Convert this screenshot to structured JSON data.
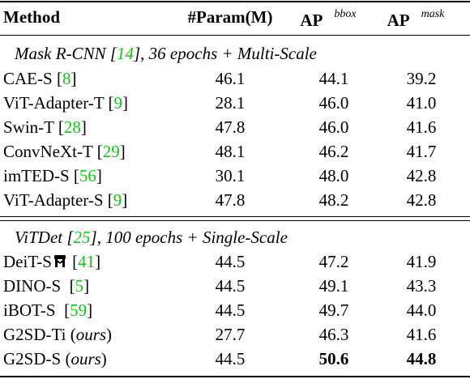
{
  "header": {
    "method": "Method",
    "param": "#Param(M)",
    "ap_bbox_base": "AP",
    "ap_bbox_sup": "bbox",
    "ap_mask_base": "AP",
    "ap_mask_sup": "mask"
  },
  "section1": {
    "title_pre": "Mask R-CNN [",
    "cite": "14",
    "title_post": "], 36 epochs + Multi-Scale"
  },
  "section2": {
    "title_pre": "ViTDet [",
    "cite": "25",
    "title_post": "], 100 epochs + Single-Scale"
  },
  "rows1": [
    {
      "name": "CAE-S",
      "cite": "8",
      "param": "46.1",
      "bbox": "44.1",
      "mask": "39.2"
    },
    {
      "name": "ViT-Adapter-T",
      "cite": "9",
      "param": "28.1",
      "bbox": "46.0",
      "mask": "41.0"
    },
    {
      "name": "Swin-T",
      "cite": "28",
      "param": "47.8",
      "bbox": "46.0",
      "mask": "41.6"
    },
    {
      "name": "ConvNeXt-T",
      "cite": "29",
      "param": "48.1",
      "bbox": "46.2",
      "mask": "41.7"
    },
    {
      "name": "imTED-S",
      "cite": "56",
      "param": "30.1",
      "bbox": "48.0",
      "mask": "42.8"
    },
    {
      "name": "ViT-Adapter-S",
      "cite": "9",
      "param": "47.8",
      "bbox": "48.2",
      "mask": "42.8"
    }
  ],
  "rows2": [
    {
      "name": "DeiT-S",
      "cite": "41",
      "param": "44.5",
      "bbox": "47.2",
      "mask": "41.9"
    },
    {
      "name": "DINO-S",
      "cite": "5",
      "param": "44.5",
      "bbox": "49.1",
      "mask": "43.3"
    },
    {
      "name": "iBOT-S",
      "cite": "59",
      "param": "44.5",
      "bbox": "49.7",
      "mask": "44.0"
    },
    {
      "name": "G2SD-Ti",
      "ours": "ours",
      "param": "27.7",
      "bbox": "46.3",
      "mask": "41.6"
    },
    {
      "name": "G2SD-S",
      "ours": "ours",
      "param": "44.5",
      "bbox": "50.6",
      "mask": "44.8"
    }
  ]
}
